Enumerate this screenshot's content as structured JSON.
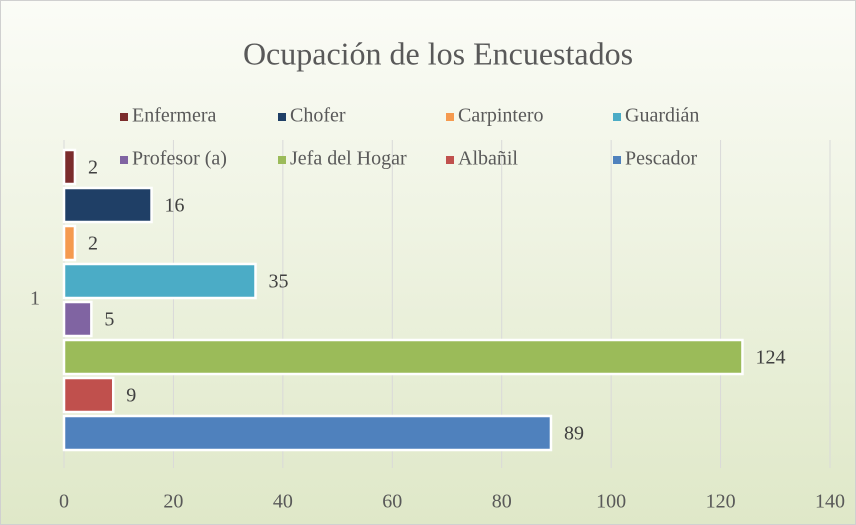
{
  "chart_data": {
    "type": "bar",
    "orientation": "horizontal",
    "title": "Ocupación de los Encuestados",
    "categories": [
      "1"
    ],
    "series": [
      {
        "name": "Enfermera",
        "color": "#7b2c2c",
        "values": [
          2
        ]
      },
      {
        "name": "Chofer",
        "color": "#1f3f66",
        "values": [
          16
        ]
      },
      {
        "name": "Carpintero",
        "color": "#f59a4f",
        "values": [
          2
        ]
      },
      {
        "name": "Guardián",
        "color": "#4bacc6",
        "values": [
          35
        ]
      },
      {
        "name": "Profesor (a)",
        "color": "#8064a2",
        "values": [
          5
        ]
      },
      {
        "name": "Jefa del Hogar",
        "color": "#9bbb59",
        "values": [
          124
        ]
      },
      {
        "name": "Albañil",
        "color": "#c0504d",
        "values": [
          9
        ]
      },
      {
        "name": "Pescador",
        "color": "#4f81bd",
        "values": [
          89
        ]
      }
    ],
    "xlim": [
      0,
      140
    ],
    "xticks": [
      0,
      20,
      40,
      60,
      80,
      100,
      120,
      140
    ],
    "grid": true,
    "legend": "top"
  }
}
